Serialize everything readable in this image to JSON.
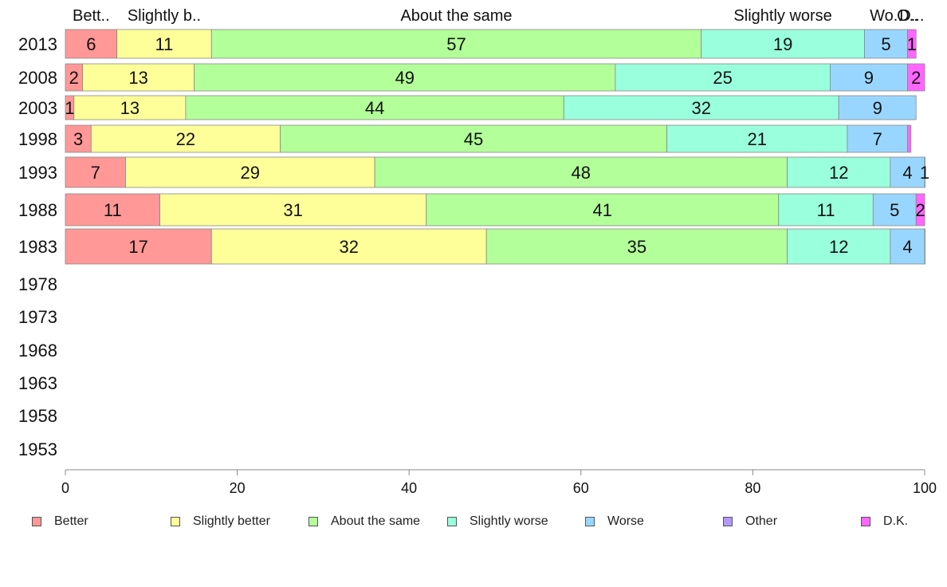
{
  "chart_data": {
    "type": "bar",
    "orientation": "horizontal",
    "stacked": true,
    "categories": [
      "2013",
      "2008",
      "2003",
      "1998",
      "1993",
      "1988",
      "1983",
      "1978",
      "1973",
      "1968",
      "1963",
      "1958",
      "1953"
    ],
    "series": [
      {
        "name": "Better",
        "color": "#ff9896",
        "values": [
          6,
          2,
          1,
          3,
          7,
          11,
          17,
          null,
          null,
          null,
          null,
          null,
          null
        ]
      },
      {
        "name": "Slightly better",
        "color": "#ffff99",
        "values": [
          11,
          13,
          13,
          22,
          29,
          31,
          32,
          null,
          null,
          null,
          null,
          null,
          null
        ]
      },
      {
        "name": "About the same",
        "color": "#b3ff99",
        "values": [
          57,
          49,
          44,
          45,
          48,
          41,
          35,
          null,
          null,
          null,
          null,
          null,
          null
        ]
      },
      {
        "name": "Slightly worse",
        "color": "#99ffdd",
        "values": [
          19,
          25,
          32,
          21,
          12,
          11,
          12,
          null,
          null,
          null,
          null,
          null,
          null
        ]
      },
      {
        "name": "Worse",
        "color": "#99d6ff",
        "values": [
          5,
          9,
          9,
          7,
          4,
          5,
          4,
          null,
          null,
          null,
          null,
          null,
          null
        ]
      },
      {
        "name": "Other",
        "color": "#b399ff",
        "values": [
          0,
          0,
          0,
          0,
          0,
          0,
          0,
          null,
          null,
          null,
          null,
          null,
          null
        ]
      },
      {
        "name": "D.K.",
        "color": "#ff66ff",
        "values": [
          1,
          2,
          0,
          0.4,
          1,
          2,
          0.3,
          null,
          null,
          null,
          null,
          null,
          null
        ]
      }
    ],
    "top_labels": [
      "Bett..",
      "Slightly b..",
      "About the same",
      "Slightly worse",
      "Wo..",
      "O..",
      "D..."
    ],
    "x_ticks": [
      "0",
      "20",
      "40",
      "60",
      "80",
      "100"
    ],
    "xlim": [
      0,
      100
    ],
    "xlabel": "",
    "ylabel": "",
    "title": "",
    "legend_position": "bottom",
    "grid": false
  }
}
